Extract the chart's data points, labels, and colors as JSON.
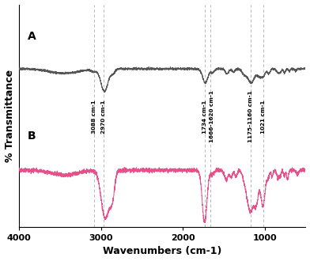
{
  "xlabel": "Wavenumbers (cm-1)",
  "ylabel": "% Transmittance",
  "label_A": "A",
  "label_B": "B",
  "color_A": "#555555",
  "color_B": "#e8508a",
  "background_color": "#ffffff",
  "vline_positions": [
    3088,
    2970,
    1734,
    1666,
    1175,
    1021
  ],
  "vline_color": "#aaaaaa",
  "xticks": [
    4000,
    3000,
    2000,
    1000
  ],
  "vline_labels": [
    [
      3088,
      "3088 cm-1"
    ],
    [
      2970,
      "2970 cm-1"
    ],
    [
      1734,
      "1734 cm-1"
    ],
    [
      1643,
      "1666-1620 cm-1"
    ],
    [
      1175,
      "1175-1160 cm-1"
    ],
    [
      1021,
      "1021 cm-1"
    ]
  ]
}
